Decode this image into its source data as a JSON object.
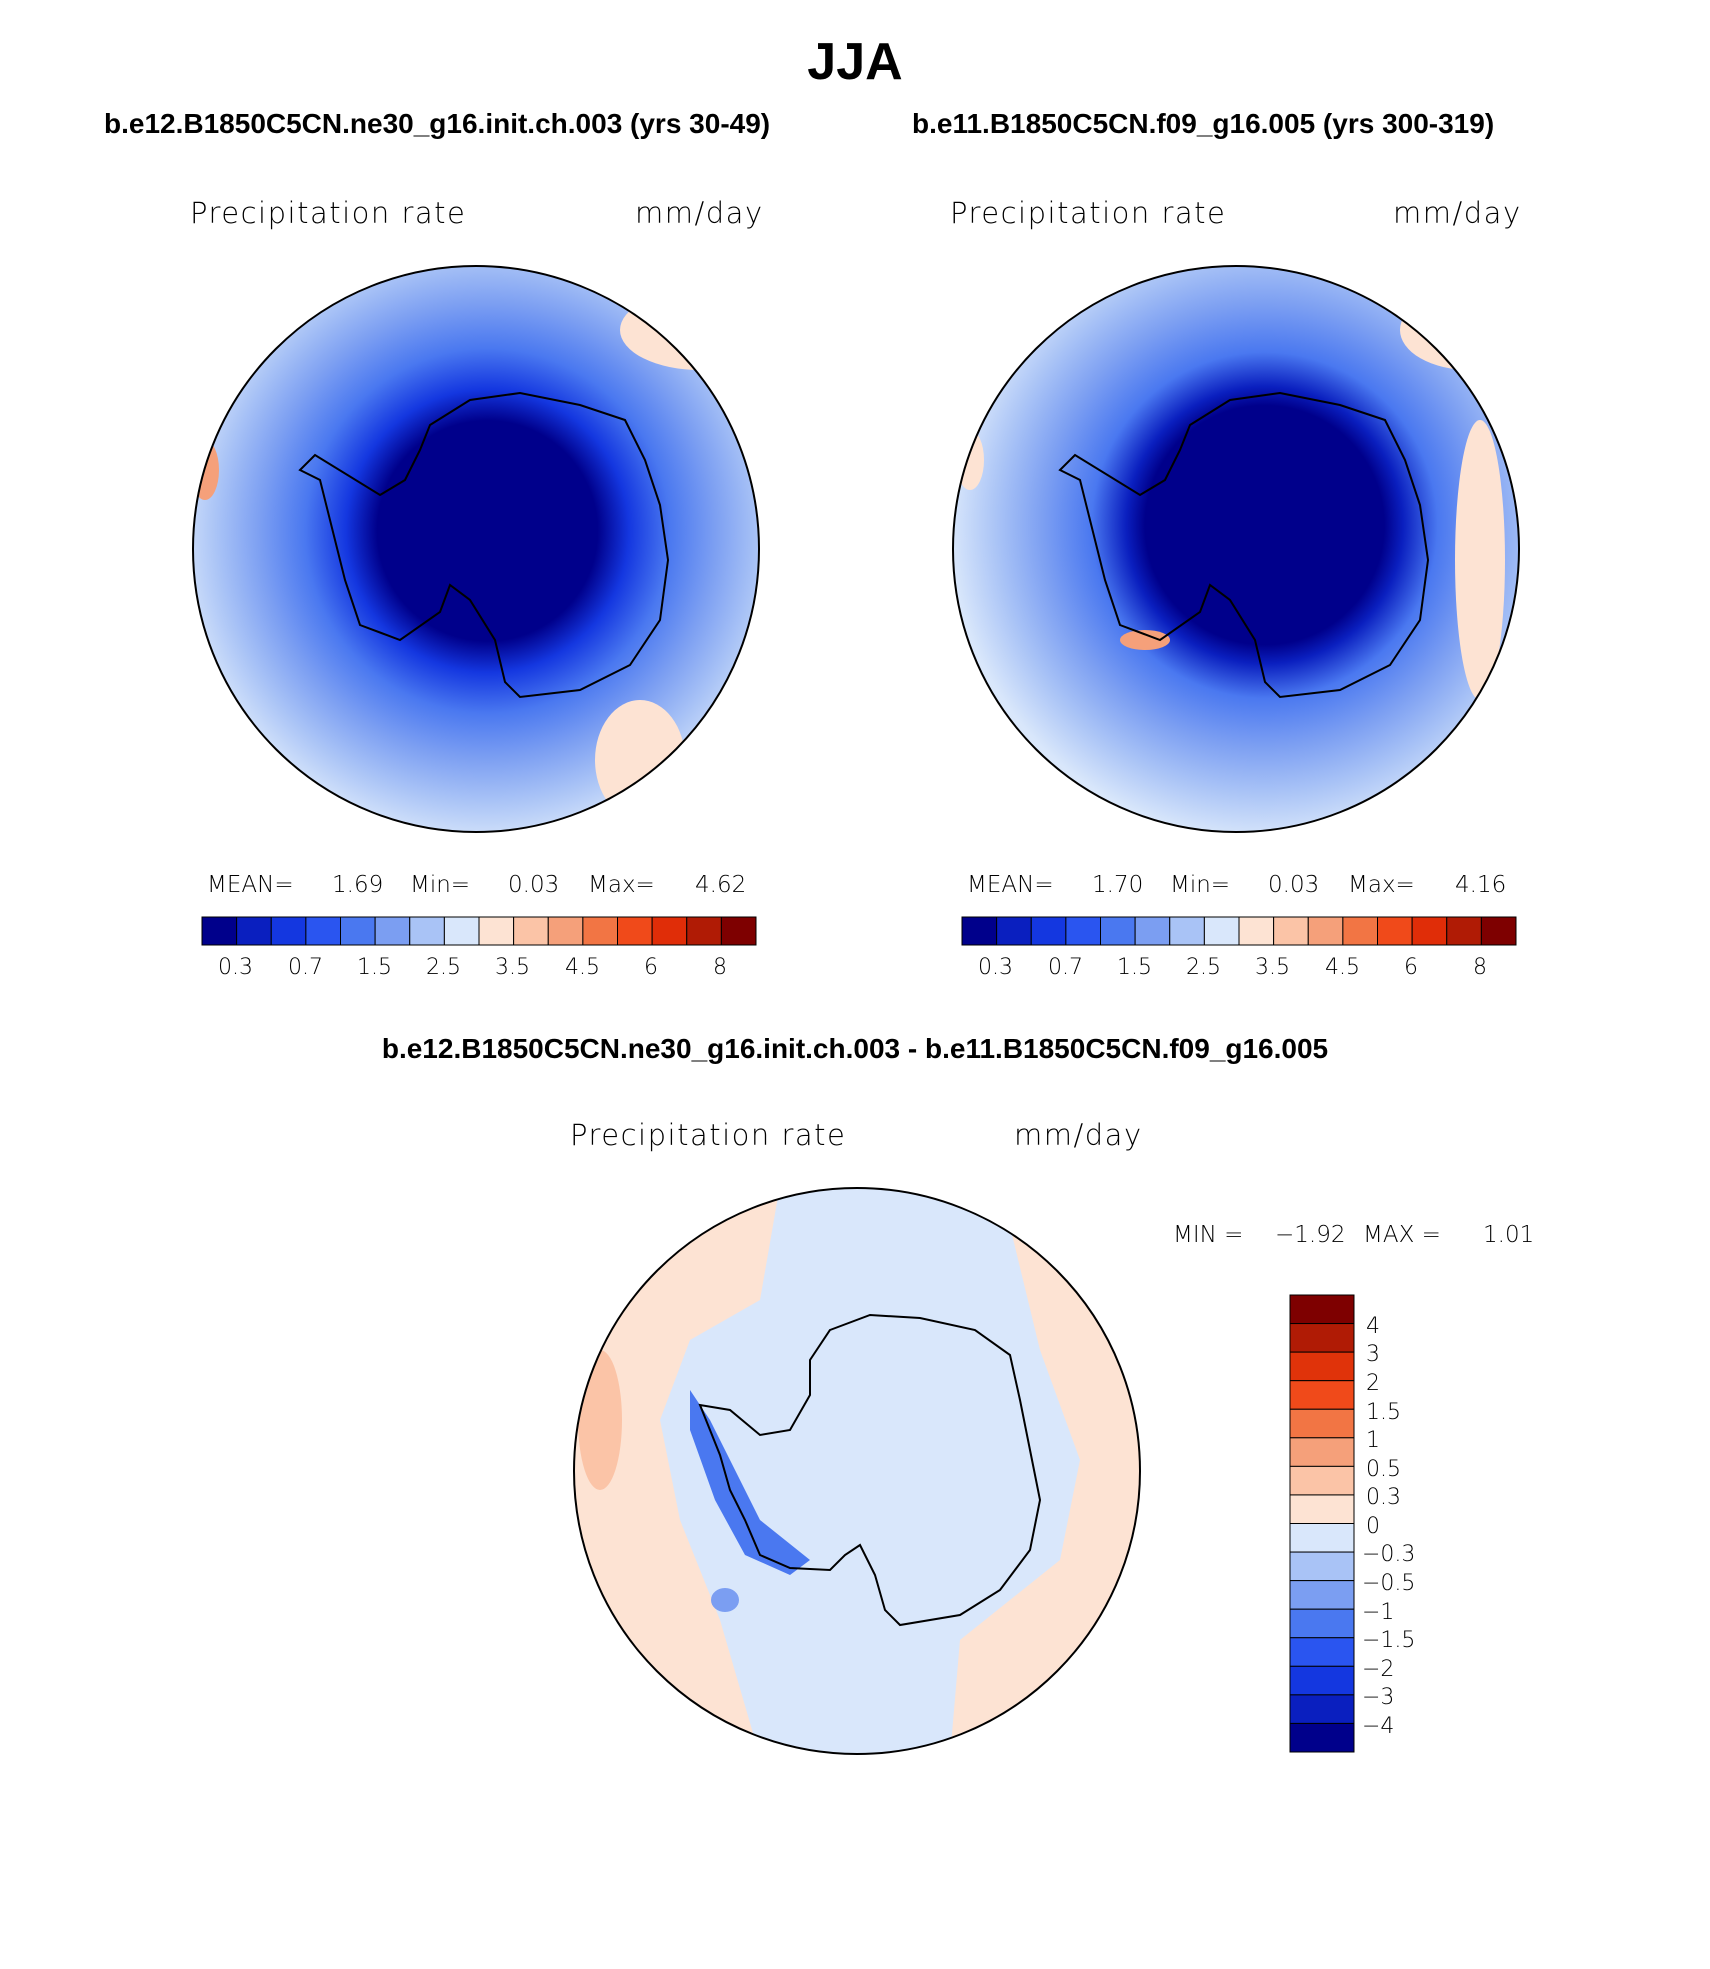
{
  "figure": {
    "title": "JJA",
    "bottom_title": "b.e12.B1850C5CN.ne30_g16.init.ch.003 - b.e11.B1850C5CN.f09_g16.005"
  },
  "panels": [
    {
      "case": "b.e12.B1850C5CN.ne30_g16.init.ch.003 (yrs 30-49)",
      "variable": "Precipitation rate",
      "units": "mm/day",
      "stats": {
        "mean_label": "MEAN=",
        "mean": "1.69",
        "min_label": "Min=",
        "min": "0.03",
        "max_label": "Max=",
        "max": "4.62"
      }
    },
    {
      "case": "b.e11.B1850C5CN.f09_g16.005 (yrs 300-319)",
      "variable": "Precipitation rate",
      "units": "mm/day",
      "stats": {
        "mean_label": "MEAN=",
        "mean": "1.70",
        "min_label": "Min=",
        "min": "0.03",
        "max_label": "Max=",
        "max": "4.16"
      }
    }
  ],
  "diff_panel": {
    "variable": "Precipitation rate",
    "units": "mm/day",
    "stats": {
      "min_label": "MIN =",
      "min": "−1.92",
      "max_label": "MAX =",
      "max": "1.01"
    }
  },
  "colorbars": {
    "abs_levels": [
      "0.3",
      "0.7",
      "1.5",
      "2.5",
      "3.5",
      "4.5",
      "6",
      "8"
    ],
    "abs_colors": [
      "#00008b",
      "#0a1fbf",
      "#1437e0",
      "#2a55f0",
      "#4a78f0",
      "#7b9ef2",
      "#a9c3f6",
      "#d9e7fb",
      "#fde3d3",
      "#fbc4a7",
      "#f5a07a",
      "#f27544",
      "#f04a1a",
      "#e02d08",
      "#b01b05",
      "#7e0000"
    ],
    "diff_levels": [
      "4",
      "3",
      "2",
      "1.5",
      "1",
      "0.5",
      "0.3",
      "0",
      "−0.3",
      "−0.5",
      "−1",
      "−1.5",
      "−2",
      "−3",
      "−4"
    ],
    "diff_colors_top_to_bottom": [
      "#7e0000",
      "#b01b05",
      "#e0330a",
      "#f04a1a",
      "#f27544",
      "#f5a07a",
      "#fbc4a7",
      "#fde3d3",
      "#d9e7fb",
      "#a9c3f6",
      "#7b9ef2",
      "#4a78f0",
      "#2a55f0",
      "#1437e0",
      "#0a1fbf",
      "#00008b"
    ]
  }
}
